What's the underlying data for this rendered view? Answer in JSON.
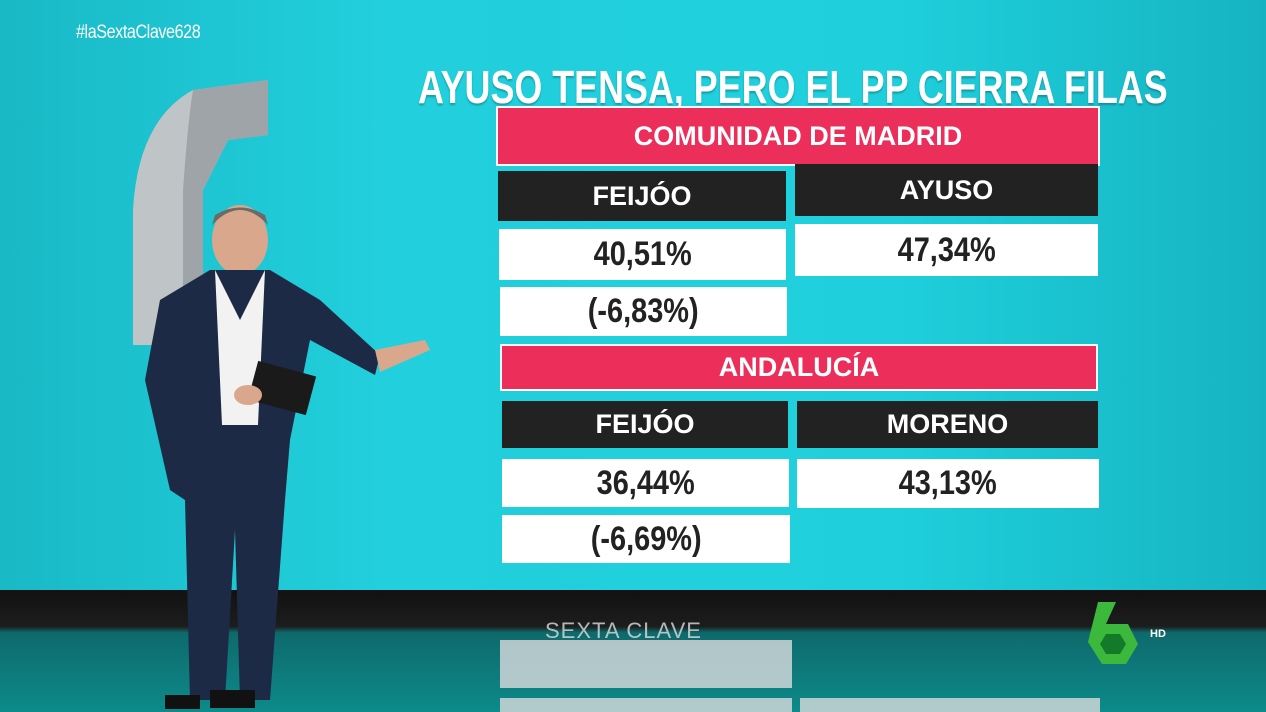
{
  "hashtag": "#laSextaClave628",
  "title": "AYUSO TENSA, PERO EL PP CIERRA FILAS",
  "sections": [
    {
      "region": "COMUNIDAD DE MADRID",
      "left_name": "FEIJÓO",
      "left_value": "40,51%",
      "left_diff": "(-6,83%)",
      "right_name": "AYUSO",
      "right_value": "47,34%"
    },
    {
      "region": "ANDALUCÍA",
      "left_name": "FEIJÓO",
      "left_value": "36,44%",
      "left_diff": "(-6,69%)",
      "right_name": "MORENO",
      "right_value": "43,13%"
    }
  ],
  "program_logo": "SEXTA CLAVE",
  "channel": {
    "logo": "laSexta 6",
    "quality": "HD"
  },
  "colors": {
    "wall": "#1fd0dc",
    "region_header": "#ec2f5a",
    "name_header": "#222222",
    "value_box": "#ffffff",
    "channel_green": "#3cb93c"
  }
}
